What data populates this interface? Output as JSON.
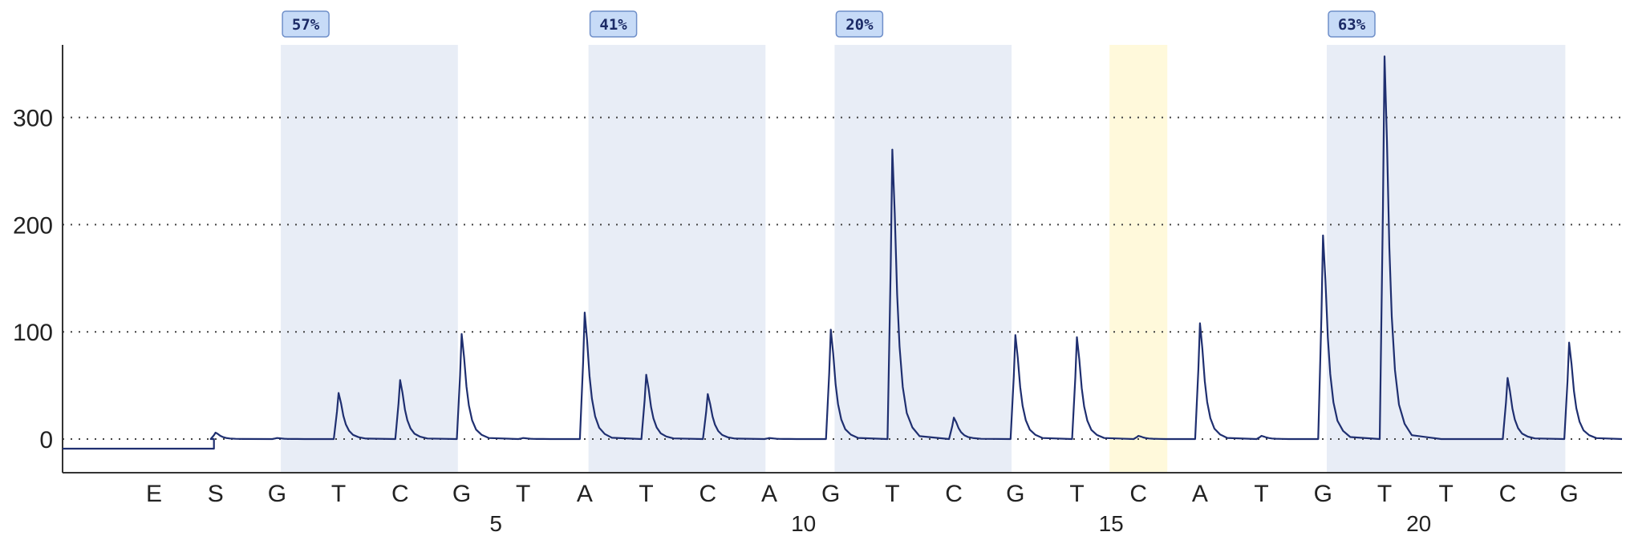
{
  "chart_data": {
    "type": "line",
    "title": "",
    "xlabel": "",
    "ylabel": "",
    "ylim": [
      -30,
      365
    ],
    "y_ticks": [
      "0",
      "100",
      "200",
      "300"
    ],
    "grid": "horizontal dotted",
    "dispensation_order": [
      "E",
      "S",
      "G",
      "T",
      "C",
      "G",
      "T",
      "A",
      "T",
      "C",
      "A",
      "G",
      "T",
      "C",
      "G",
      "T",
      "C",
      "A",
      "T",
      "G",
      "T",
      "T",
      "C",
      "G"
    ],
    "position_labels": [
      {
        "at_index": 6,
        "label": "5"
      },
      {
        "at_index": 11,
        "label": "10"
      },
      {
        "at_index": 16,
        "label": "15"
      },
      {
        "at_index": 21,
        "label": "20"
      }
    ],
    "baseline_before_start": -9,
    "series": [
      {
        "values": [
          null,
          6,
          1,
          43,
          55,
          98,
          1,
          118,
          60,
          42,
          1,
          102,
          270,
          20,
          97,
          95,
          3,
          108,
          3,
          190,
          357,
          0,
          57,
          90
        ]
      }
    ],
    "highlight_regions": [
      {
        "from_index": 3,
        "to_index": 4,
        "label": "57%",
        "color": "#e8edf6"
      },
      {
        "from_index": 8,
        "to_index": 9,
        "label": "41%",
        "color": "#e8edf6"
      },
      {
        "from_index": 12,
        "to_index": 13,
        "label": "20%",
        "color": "#e8edf6"
      },
      {
        "from_index": 16,
        "to_index": 16,
        "label": "",
        "color": "#fff9db"
      },
      {
        "from_index": 20,
        "to_index": 22,
        "label": "63%",
        "color": "#e8edf6"
      }
    ],
    "colors": {
      "trace": "#1f2f70",
      "badge_fill": "#c7dbf7",
      "badge_border": "#6f8fc9"
    }
  }
}
